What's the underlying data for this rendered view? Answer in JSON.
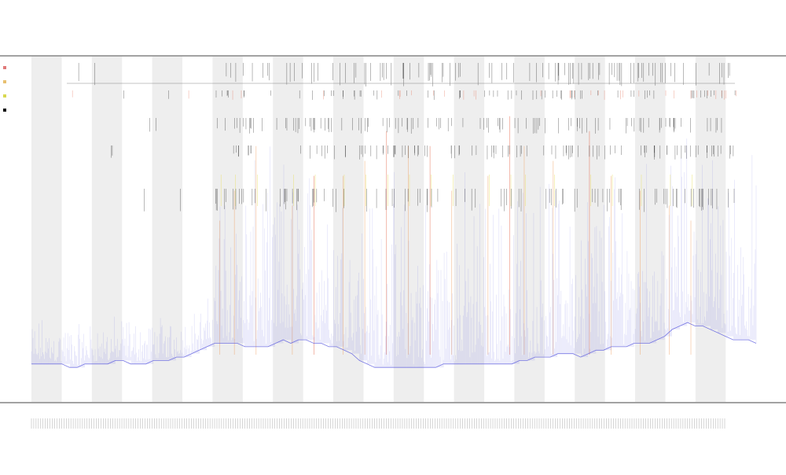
{
  "chart_data": {
    "type": "line",
    "title": "",
    "subtitle": "",
    "xlabel": "",
    "ylabel": "",
    "legend_placement": "top-left",
    "legend": [
      {
        "name": "",
        "color": "#e07a7a"
      },
      {
        "name": "",
        "color": "#e8c070"
      },
      {
        "name": "",
        "color": "#d8d850"
      },
      {
        "name": "",
        "color": "#111111"
      }
    ],
    "grid": false,
    "alternating_bands": true,
    "band_color": "#eeeeee",
    "x_tick_count": 300,
    "colors": {
      "baseline": "#5a5adf",
      "spike_red": "#e25a3a",
      "spike_orange": "#f0a060",
      "spike_yellow": "#e8e060",
      "marker_black": "#000000",
      "axis": "#444444"
    },
    "series": [
      {
        "name": "",
        "color": "#5a5adf",
        "values": [
          3,
          3,
          3,
          3,
          3,
          2,
          2,
          3,
          3,
          3,
          3,
          4,
          4,
          3,
          3,
          3,
          4,
          4,
          4,
          5,
          5,
          6,
          7,
          8,
          9,
          9,
          9,
          9,
          8,
          8,
          8,
          8,
          9,
          10,
          9,
          10,
          10,
          9,
          9,
          8,
          8,
          7,
          6,
          4,
          3,
          2,
          2,
          2,
          2,
          2,
          2,
          2,
          2,
          2,
          3,
          3,
          3,
          3,
          3,
          3,
          3,
          3,
          3,
          3,
          4,
          4,
          5,
          5,
          5,
          6,
          6,
          6,
          5,
          6,
          7,
          7,
          8,
          8,
          8,
          9,
          9,
          9,
          10,
          11,
          13,
          14,
          15,
          14,
          14,
          13,
          12,
          11,
          10,
          10,
          10,
          9
        ]
      }
    ],
    "spikes": [
      {
        "x": 0.26,
        "h": 0.45,
        "c": "orange"
      },
      {
        "x": 0.28,
        "h": 0.55,
        "c": "orange"
      },
      {
        "x": 0.31,
        "h": 0.7,
        "c": "orange"
      },
      {
        "x": 0.36,
        "h": 0.5,
        "c": "orange"
      },
      {
        "x": 0.39,
        "h": 0.6,
        "c": "red"
      },
      {
        "x": 0.43,
        "h": 0.6,
        "c": "orange"
      },
      {
        "x": 0.46,
        "h": 0.65,
        "c": "orange"
      },
      {
        "x": 0.49,
        "h": 0.75,
        "c": "red"
      },
      {
        "x": 0.52,
        "h": 0.7,
        "c": "orange"
      },
      {
        "x": 0.55,
        "h": 0.7,
        "c": "red"
      },
      {
        "x": 0.58,
        "h": 0.55,
        "c": "orange"
      },
      {
        "x": 0.63,
        "h": 0.6,
        "c": "orange"
      },
      {
        "x": 0.66,
        "h": 0.8,
        "c": "red"
      },
      {
        "x": 0.68,
        "h": 0.7,
        "c": "orange"
      },
      {
        "x": 0.72,
        "h": 0.65,
        "c": "orange"
      },
      {
        "x": 0.77,
        "h": 0.75,
        "c": "red"
      },
      {
        "x": 0.8,
        "h": 0.6,
        "c": "orange"
      },
      {
        "x": 0.84,
        "h": 0.55,
        "c": "orange"
      },
      {
        "x": 0.88,
        "h": 0.5,
        "c": "orange"
      },
      {
        "x": 0.91,
        "h": 0.45,
        "c": "orange"
      }
    ]
  }
}
